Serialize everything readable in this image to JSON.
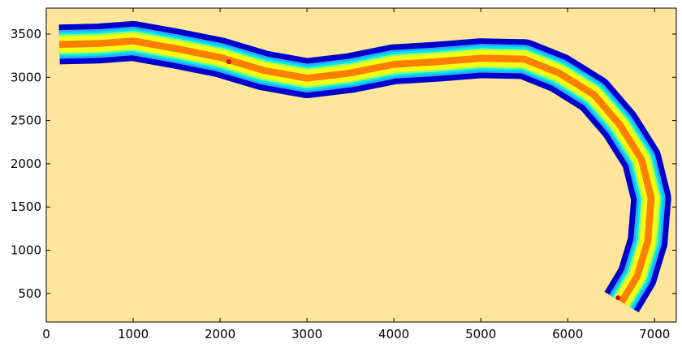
{
  "chart_data": {
    "type": "heatmap",
    "title": "",
    "xlabel": "",
    "ylabel": "",
    "xlim": [
      0,
      7250
    ],
    "ylim": [
      170,
      3800
    ],
    "x_ticks": [
      0,
      1000,
      2000,
      3000,
      4000,
      5000,
      6000,
      7000
    ],
    "y_ticks": [
      500,
      1000,
      1500,
      2000,
      2500,
      3000,
      3500
    ],
    "x_tick_labels": [
      "0",
      "1000",
      "2000",
      "3000",
      "4000",
      "5000",
      "6000",
      "7000"
    ],
    "y_tick_labels": [
      "500",
      "1000",
      "1500",
      "2000",
      "2500",
      "3000",
      "3500"
    ],
    "background_level_color": "#fde59b",
    "colormap": "jet (filled contour levels)",
    "channel": {
      "description": "filled contour levels along a curved channel",
      "centerline": [
        [
          150,
          3380
        ],
        [
          600,
          3390
        ],
        [
          1000,
          3420
        ],
        [
          1500,
          3330
        ],
        [
          2000,
          3230
        ],
        [
          2500,
          3080
        ],
        [
          3000,
          2990
        ],
        [
          3500,
          3050
        ],
        [
          4000,
          3150
        ],
        [
          4500,
          3180
        ],
        [
          5000,
          3220
        ],
        [
          5500,
          3210
        ],
        [
          5900,
          3050
        ],
        [
          6300,
          2800
        ],
        [
          6600,
          2450
        ],
        [
          6850,
          2050
        ],
        [
          6960,
          1600
        ],
        [
          6920,
          1100
        ],
        [
          6800,
          700
        ],
        [
          6620,
          400
        ]
      ],
      "levels": [
        {
          "name": "outer",
          "color": "#0000cd",
          "half_width": 230
        },
        {
          "name": "level-2",
          "color": "#2ea8ff",
          "half_width": 165
        },
        {
          "name": "level-3",
          "color": "#00e8e8",
          "half_width": 140
        },
        {
          "name": "level-4",
          "color": "#7fff7f",
          "half_width": 115
        },
        {
          "name": "level-5",
          "color": "#f2ff14",
          "half_width": 95
        },
        {
          "name": "core",
          "color": "#ff7f00",
          "half_width": 40
        }
      ],
      "hot_spots": [
        {
          "x": 2100,
          "y": 3180,
          "color": "#cc1010"
        },
        {
          "x": 6580,
          "y": 450,
          "color": "#cc1010"
        }
      ]
    }
  }
}
